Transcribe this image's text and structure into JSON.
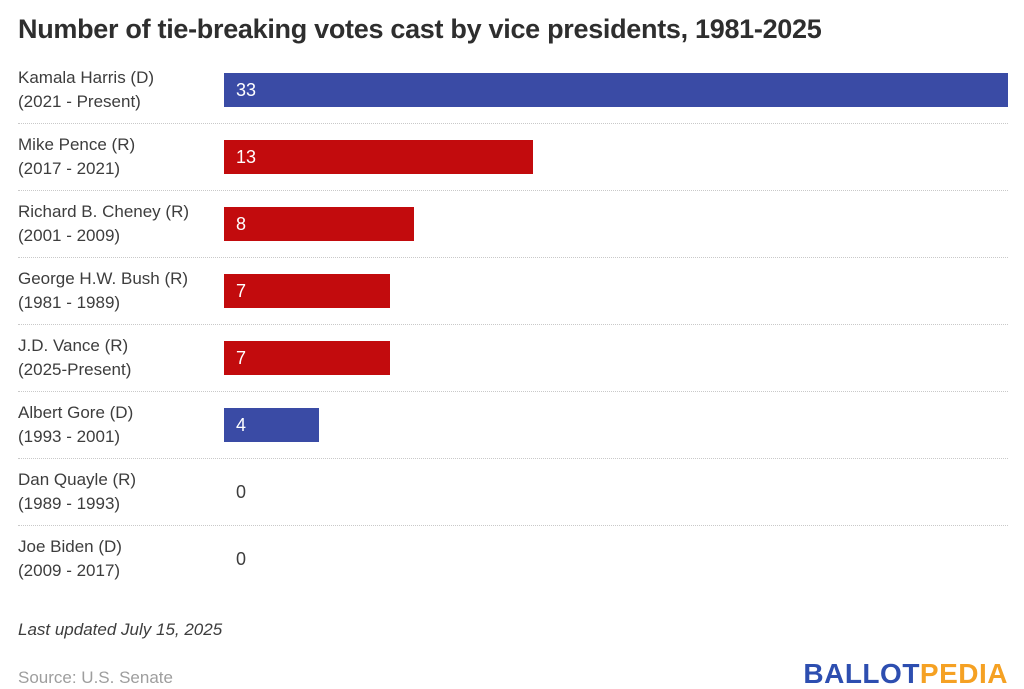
{
  "chart_data": {
    "type": "bar",
    "orientation": "horizontal",
    "title": "Number of tie-breaking votes cast by vice presidents, 1981-2025",
    "categories": [
      "Kamala Harris (D) (2021 - Present)",
      "Mike Pence (R) (2017 - 2021)",
      "Richard B. Cheney (R) (2001 - 2009)",
      "George H.W. Bush (R) (1981 - 1989)",
      "J.D. Vance (R) (2025-Present)",
      "Albert Gore (D) (1993 - 2001)",
      "Dan Quayle (R) (1989 - 1993)",
      "Joe Biden (D) (2009 - 2017)"
    ],
    "values": [
      33,
      13,
      8,
      7,
      7,
      4,
      0,
      0
    ],
    "xlim": [
      0,
      33
    ],
    "max": 33,
    "legend": "none",
    "grid": "dotted-row-separators",
    "rows": [
      {
        "name": "Kamala Harris (D)",
        "term": "(2021 - Present)",
        "party": "D",
        "value": 33
      },
      {
        "name": "Mike Pence (R)",
        "term": "(2017 - 2021)",
        "party": "R",
        "value": 13
      },
      {
        "name": "Richard B. Cheney (R)",
        "term": "(2001 - 2009)",
        "party": "R",
        "value": 8
      },
      {
        "name": "George H.W. Bush (R)",
        "term": "(1981 - 1989)",
        "party": "R",
        "value": 7
      },
      {
        "name": "J.D. Vance (R)",
        "term": "(2025-Present)",
        "party": "R",
        "value": 7
      },
      {
        "name": "Albert Gore (D)",
        "term": "(1993 - 2001)",
        "party": "D",
        "value": 4
      },
      {
        "name": "Dan Quayle (R)",
        "term": "(1989 - 1993)",
        "party": "R",
        "value": 0
      },
      {
        "name": "Joe Biden (D)",
        "term": "(2009 - 2017)",
        "party": "D",
        "value": 0
      }
    ],
    "party_colors": {
      "D": "#3A4BA5",
      "R": "#C20B0D"
    },
    "bar_value_text_color": "#ffffff",
    "zero_value_text_color": "#3d3d3d"
  },
  "footer": {
    "last_updated": "Last updated July 15, 2025",
    "source": "Source: U.S. Senate",
    "logo": {
      "ballot": "BALLOT",
      "pedia": "PEDIA",
      "ballot_color": "#2D4EB0",
      "pedia_color": "#F5A123"
    }
  }
}
